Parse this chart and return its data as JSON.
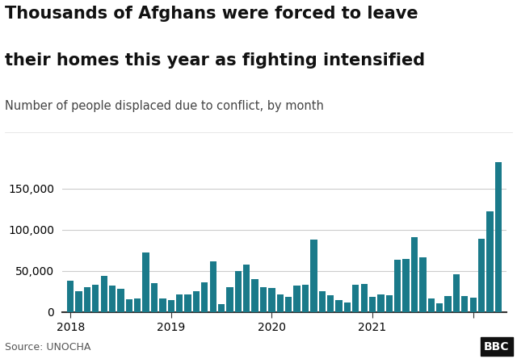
{
  "title_line1": "Thousands of Afghans were forced to leave",
  "title_line2": "their homes this year as fighting intensified",
  "subtitle": "Number of people displaced due to conflict, by month",
  "source": "Source: UNOCHA",
  "bar_color": "#1a7a8a",
  "background_color": "#ffffff",
  "ylim": [
    0,
    185000
  ],
  "yticks": [
    0,
    50000,
    100000,
    150000
  ],
  "values": [
    38000,
    25000,
    30000,
    33000,
    44000,
    32000,
    28000,
    16000,
    17000,
    72000,
    35000,
    17000,
    15000,
    22000,
    22000,
    25000,
    36000,
    62000,
    10000,
    30000,
    50000,
    58000,
    40000,
    30000,
    29000,
    22000,
    19000,
    32000,
    33000,
    88000,
    25000,
    21000,
    15000,
    12000,
    33000,
    34000,
    19000,
    22000,
    21000,
    64000,
    65000,
    91000,
    67000,
    17000,
    11000,
    20000,
    46000,
    20000,
    18000,
    89000,
    122000,
    182000
  ],
  "x_tick_positions": [
    0,
    12,
    24,
    36,
    48
  ],
  "x_tick_labels": [
    "2018",
    "2019",
    "2020",
    "2021",
    ""
  ],
  "title_fontsize": 15,
  "subtitle_fontsize": 10.5,
  "axis_fontsize": 10,
  "grid_color": "#cccccc",
  "title_color": "#111111",
  "subtitle_color": "#444444",
  "source_color": "#555555"
}
